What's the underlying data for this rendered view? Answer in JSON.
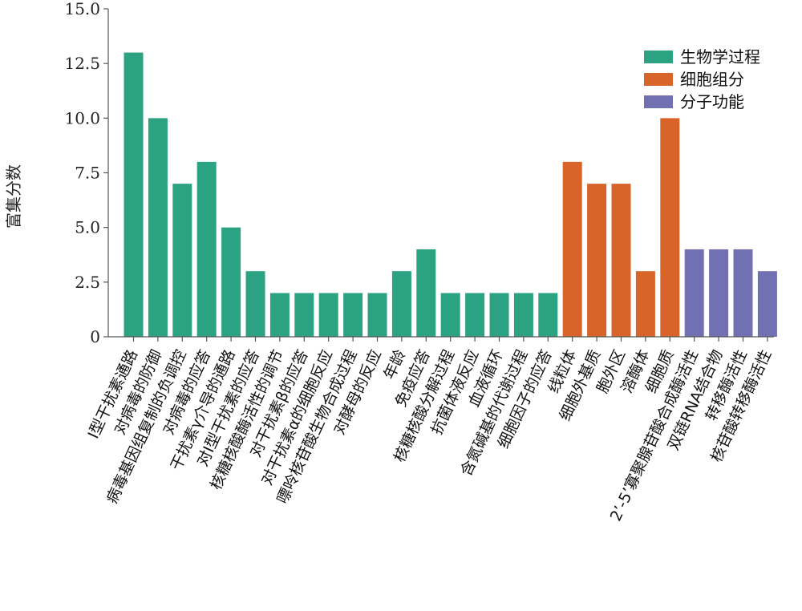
{
  "chart_data": {
    "type": "bar",
    "title": "",
    "xlabel": "",
    "ylabel": "富集分数",
    "ylim": [
      0,
      15
    ],
    "yticks": [
      "0",
      "2.5",
      "5.0",
      "7.5",
      "10.0",
      "12.5",
      "15.0"
    ],
    "grid": false,
    "legend_position": "top-right",
    "groups": [
      {
        "name": "生物学过程",
        "color": "#2ba281"
      },
      {
        "name": "细胞组分",
        "color": "#d9642a"
      },
      {
        "name": "分子功能",
        "color": "#7070b2"
      }
    ],
    "categories": [
      {
        "label": "I型干扰素通路",
        "value": 13,
        "group": 0
      },
      {
        "label": "对病毒的防御",
        "value": 10,
        "group": 0
      },
      {
        "label": "病毒基因组复制的负调控",
        "value": 7,
        "group": 0
      },
      {
        "label": "对病毒的应答",
        "value": 8,
        "group": 0
      },
      {
        "label": "干扰素γ介导的通路",
        "value": 5,
        "group": 0
      },
      {
        "label": "对I型干扰素的应答",
        "value": 3,
        "group": 0
      },
      {
        "label": "核糖核酸酶活性的调节",
        "value": 2,
        "group": 0
      },
      {
        "label": "对干扰素β的应答",
        "value": 2,
        "group": 0
      },
      {
        "label": "对干扰素α的细胞反应",
        "value": 2,
        "group": 0
      },
      {
        "label": "嘌呤核苷酸生物合成过程",
        "value": 2,
        "group": 0
      },
      {
        "label": "对酵母的反应",
        "value": 2,
        "group": 0
      },
      {
        "label": "年龄",
        "value": 3,
        "group": 0
      },
      {
        "label": "免疫应答",
        "value": 4,
        "group": 0
      },
      {
        "label": "核糖核酸分解过程",
        "value": 2,
        "group": 0
      },
      {
        "label": "抗菌体液反应",
        "value": 2,
        "group": 0
      },
      {
        "label": "血液循环",
        "value": 2,
        "group": 0
      },
      {
        "label": "含氮碱基的代谢过程",
        "value": 2,
        "group": 0
      },
      {
        "label": "细胞因子的应答",
        "value": 2,
        "group": 0
      },
      {
        "label": "线粒体",
        "value": 8,
        "group": 1
      },
      {
        "label": "细胞外基质",
        "value": 7,
        "group": 1
      },
      {
        "label": "胞外区",
        "value": 7,
        "group": 1
      },
      {
        "label": "溶酶体",
        "value": 3,
        "group": 1
      },
      {
        "label": "细胞质",
        "value": 10,
        "group": 1
      },
      {
        "label": "2’-5’寡聚腺苷酸合成酶活性",
        "value": 4,
        "group": 2
      },
      {
        "label": "双链RNA结合物",
        "value": 4,
        "group": 2
      },
      {
        "label": "转移酶活性",
        "value": 4,
        "group": 2
      },
      {
        "label": "核苷酸转移酶活性",
        "value": 3,
        "group": 2
      }
    ]
  }
}
